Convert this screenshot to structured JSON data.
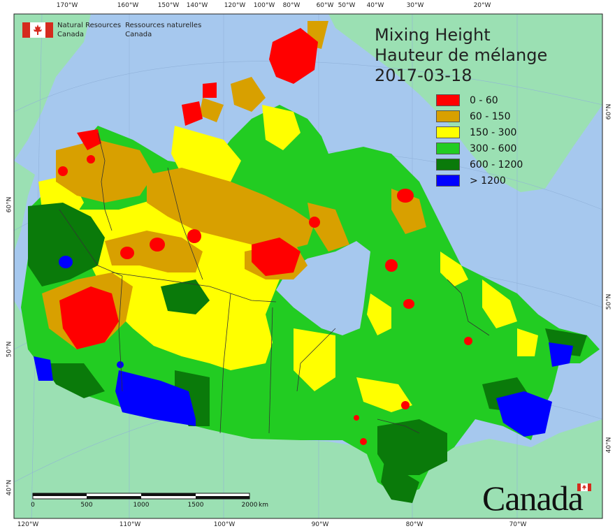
{
  "title": {
    "line1": "Mixing Height",
    "line2": "Hauteur de mélange",
    "date": "2017-03-18"
  },
  "agency": {
    "en_line1": "Natural Resources",
    "en_line2": "Canada",
    "fr_line1": "Ressources naturelles",
    "fr_line2": "Canada"
  },
  "wordmark": "Canada",
  "legend": [
    {
      "label": "0 - 60",
      "color": "#ff0000"
    },
    {
      "label": "60 - 150",
      "color": "#d8a000"
    },
    {
      "label": "150 - 300",
      "color": "#ffff00"
    },
    {
      "label": "300 - 600",
      "color": "#22cc22"
    },
    {
      "label": "600 - 1200",
      "color": "#0a7a0a"
    },
    {
      "label": "> 1200",
      "color": "#0000ff"
    }
  ],
  "colors": {
    "ocean": "#a6c8ee",
    "land_outside": "#9be0b3",
    "boundary": "#333333",
    "graticule": "#8fb0d8"
  },
  "scale_bar": {
    "labels": [
      "0",
      "500",
      "1000",
      "1500",
      "2000",
      "km"
    ]
  },
  "axis_ticks": {
    "top": [
      "170°W",
      "160°W",
      "150°W",
      "140°W",
      "120°W",
      "100°W",
      "80°W",
      "60°W",
      "50°W",
      "40°W",
      "30°W",
      "20°W"
    ],
    "bottom": [
      "120°W",
      "110°W",
      "100°W",
      "90°W",
      "80°W",
      "70°W"
    ],
    "left": [
      "60°N",
      "50°N",
      "40°N"
    ],
    "right": [
      "60°N",
      "50°N",
      "40°N"
    ]
  }
}
